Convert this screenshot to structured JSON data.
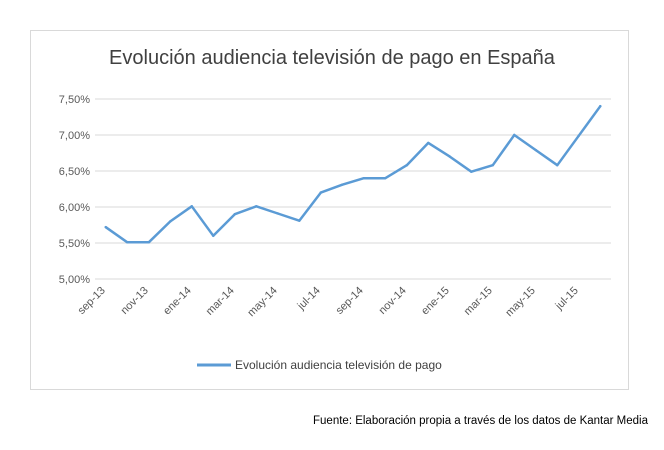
{
  "source_note": "Fuente: Elaboración propia a través de los datos de Kantar Media",
  "colors": {
    "series": "#5b9bd5",
    "grid": "#d9d9d9",
    "text": "#595959",
    "title": "#404040"
  },
  "chart_data": {
    "type": "line",
    "title": "Evolución audiencia televisión de pago en España",
    "xlabel": "",
    "ylabel": "",
    "grid": true,
    "legend_position": "bottom",
    "ylim": [
      5.0,
      7.5
    ],
    "y_ticks": [
      5.0,
      5.5,
      6.0,
      6.5,
      7.0,
      7.5
    ],
    "y_tick_labels": [
      "5,00%",
      "5,50%",
      "6,00%",
      "6,50%",
      "7,00%",
      "7,50%"
    ],
    "x": [
      "sep-13",
      "oct-13",
      "nov-13",
      "dic-13",
      "ene-14",
      "feb-14",
      "mar-14",
      "abr-14",
      "may-14",
      "jun-14",
      "jul-14",
      "ago-14",
      "sep-14",
      "oct-14",
      "nov-14",
      "dic-14",
      "ene-15",
      "feb-15",
      "mar-15",
      "abr-15",
      "may-15",
      "jun-15",
      "jul-15",
      "ago-15"
    ],
    "x_tick_labels": [
      "sep-13",
      "nov-13",
      "ene-14",
      "mar-14",
      "may-14",
      "jul-14",
      "sep-14",
      "nov-14",
      "ene-15",
      "mar-15",
      "may-15",
      "jul-15"
    ],
    "series": [
      {
        "name": "Evolución audiencia televisión de pago",
        "values": [
          5.72,
          5.51,
          5.51,
          5.8,
          6.01,
          5.6,
          5.9,
          6.01,
          5.91,
          5.81,
          6.2,
          6.31,
          6.4,
          6.4,
          6.58,
          6.89,
          6.7,
          6.49,
          6.58,
          7.0,
          6.79,
          6.58,
          6.99,
          7.4
        ]
      }
    ]
  }
}
